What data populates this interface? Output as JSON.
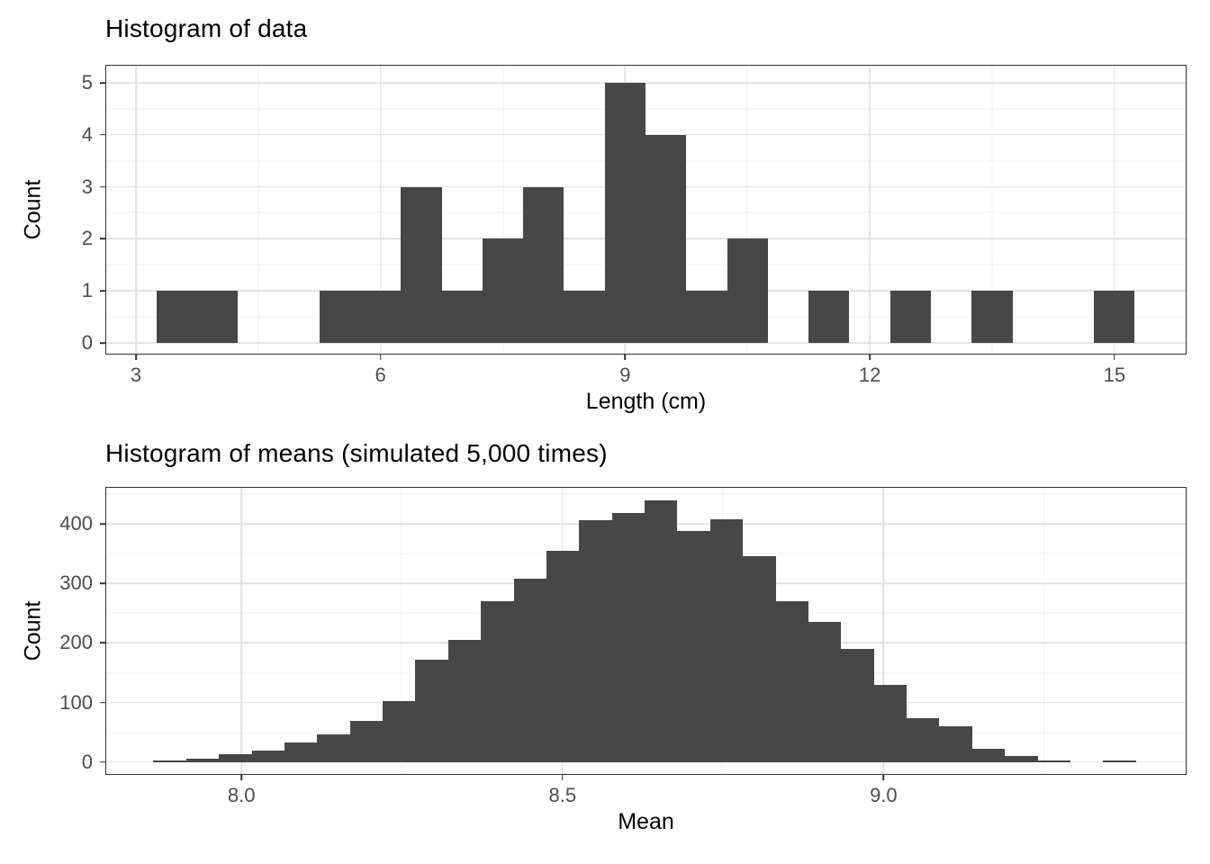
{
  "figure": {
    "background": "#ffffff"
  },
  "colors": {
    "bar_fill": "#474747",
    "panel_border": "#333333",
    "grid_major": "#e2e2e2",
    "grid_minor": "#f0f0f0",
    "tick_label": "#4d4d4d",
    "title_text": "#000000"
  },
  "chart_data": [
    {
      "type": "bar",
      "title": "Histogram of data",
      "xlabel": "Length (cm)",
      "ylabel": "Count",
      "bars": {
        "bin_start": 3.25,
        "bin_width": 0.5,
        "counts": [
          1,
          1,
          0,
          0,
          1,
          1,
          3,
          1,
          2,
          3,
          1,
          5,
          4,
          1,
          2,
          0,
          1,
          0,
          1,
          0,
          1,
          0,
          0,
          1
        ]
      },
      "x_axis": {
        "range": [
          2.625,
          15.885
        ],
        "ticks": [
          {
            "v": 3,
            "label": "3"
          },
          {
            "v": 6,
            "label": "6"
          },
          {
            "v": 9,
            "label": "9"
          },
          {
            "v": 12,
            "label": "12"
          },
          {
            "v": 15,
            "label": "15"
          }
        ],
        "minor": [
          4.5,
          7.5,
          10.5,
          13.5
        ]
      },
      "y_axis": {
        "range": [
          -0.225,
          5.346
        ],
        "ticks": [
          {
            "v": 0,
            "label": "0"
          },
          {
            "v": 1,
            "label": "1"
          },
          {
            "v": 2,
            "label": "2"
          },
          {
            "v": 3,
            "label": "3"
          },
          {
            "v": 4,
            "label": "4"
          },
          {
            "v": 5,
            "label": "5"
          }
        ],
        "minor": [
          0.5,
          1.5,
          2.5,
          3.5,
          4.5
        ]
      },
      "grid": true,
      "legend": "none"
    },
    {
      "type": "bar",
      "title": "Histogram of means (simulated 5,000 times)",
      "xlabel": "Mean",
      "ylabel": "Count",
      "bars": {
        "bin_start": 7.863,
        "bin_width": 0.051,
        "counts": [
          2,
          5,
          13,
          19,
          33,
          46,
          69,
          102,
          172,
          205,
          270,
          308,
          355,
          406,
          418,
          440,
          388,
          408,
          346,
          270,
          235,
          190,
          130,
          73,
          60,
          23,
          10,
          2,
          0,
          2
        ]
      },
      "x_axis": {
        "range": [
          7.788,
          9.472
        ],
        "ticks": [
          {
            "v": 8.0,
            "label": "8.0"
          },
          {
            "v": 8.5,
            "label": "8.5"
          },
          {
            "v": 9.0,
            "label": "9.0"
          }
        ],
        "minor": [
          8.25,
          8.75,
          9.25
        ]
      },
      "y_axis": {
        "range": [
          -21.6,
          462.3
        ],
        "ticks": [
          {
            "v": 0,
            "label": "0"
          },
          {
            "v": 100,
            "label": "100"
          },
          {
            "v": 200,
            "label": "200"
          },
          {
            "v": 300,
            "label": "300"
          },
          {
            "v": 400,
            "label": "400"
          }
        ],
        "minor": [
          50,
          150,
          250,
          350,
          450
        ]
      },
      "grid": true,
      "legend": "none"
    }
  ]
}
